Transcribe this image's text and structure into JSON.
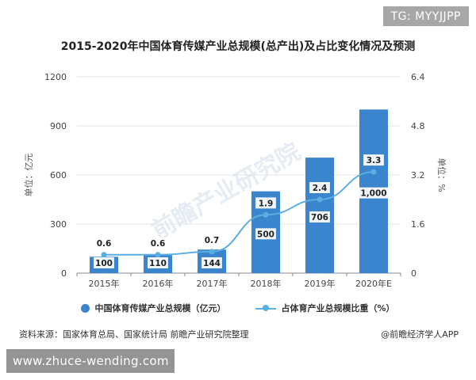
{
  "tag": "TG: MYYJJPP",
  "source": "资料来源：国家体育总局、国家统计局 前瞻产业研究院整理",
  "credit": "@前瞻经济学人APP",
  "url": "www.zhuce-wending.com",
  "watermark": "前瞻产业研究院",
  "colors": {
    "bar": "#3a85cd",
    "line": "#5aaee2",
    "axis": "#888888",
    "grid": "#e6e6e6"
  },
  "chart_data": {
    "type": "bar",
    "title": "2015-2020年中国体育传媒产业总规模(总产出)及占比变化情况及预测",
    "categories": [
      "2015年",
      "2016年",
      "2017年",
      "2018年",
      "2019年",
      "2020年E"
    ],
    "ylabel": "单位：亿元",
    "y2label": "单位：%",
    "ylim": [
      0,
      1200
    ],
    "yticks": [
      0,
      300,
      600,
      900,
      1200
    ],
    "y2lim": [
      0,
      6.4
    ],
    "y2ticks": [
      "0",
      "1.6",
      "3.2",
      "4.8",
      "6.4"
    ],
    "grid": true,
    "legend_position": "bottom",
    "series": [
      {
        "name": "中国体育传媒产业总规模（亿元）",
        "type": "bar",
        "values": [
          100,
          110,
          144,
          500,
          706,
          1000
        ],
        "labels": [
          "100",
          "110",
          "144",
          "500",
          "706",
          "1,000"
        ]
      },
      {
        "name": "占体育产业总规模比重（%）",
        "type": "line",
        "axis": "right",
        "values": [
          0.6,
          0.6,
          0.7,
          1.9,
          2.4,
          3.3
        ],
        "labels": [
          "0.6",
          "0.6",
          "0.7",
          "1.9",
          "2.4",
          "3.3"
        ]
      }
    ]
  }
}
